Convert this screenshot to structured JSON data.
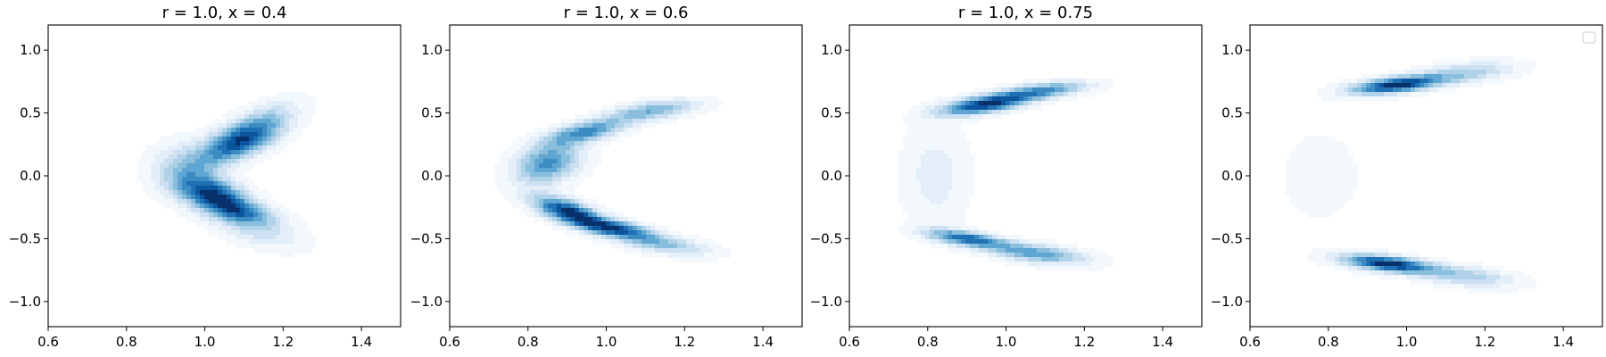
{
  "colors": {
    "cmap": [
      "#f3f8fd",
      "#e3eef9",
      "#cde0f2",
      "#b0d2e8",
      "#89bedc",
      "#60a6d2",
      "#3c8bc3",
      "#2070b4",
      "#0b559f",
      "#08306b"
    ],
    "axes_edge": "#000000",
    "background": "#ffffff"
  },
  "chart_data": [
    {
      "type": "contour",
      "title": "r = 1.0, x = 0.4",
      "xlim": [
        0.6,
        1.5
      ],
      "ylim": [
        -1.2,
        1.2
      ],
      "xticks": [
        0.6,
        0.8,
        1.0,
        1.2,
        1.4
      ],
      "yticks": [
        -1.0,
        -0.5,
        0.0,
        0.5,
        1.0
      ],
      "xtick_labels": [
        "0.6",
        "0.8",
        "1.0",
        "1.2",
        "1.4"
      ],
      "ytick_labels": [
        "−1.0",
        "−0.5",
        "0.0",
        "0.5",
        "1.0"
      ],
      "legend": false,
      "levels": 10,
      "density_components": [
        {
          "x": 1.09,
          "y": 0.27,
          "sx": 0.07,
          "sy": 0.12,
          "rho": 0.6,
          "w": 1.0
        },
        {
          "x": 1.02,
          "y": -0.13,
          "sx": 0.06,
          "sy": 0.09,
          "rho": -0.4,
          "w": 0.9
        },
        {
          "x": 1.08,
          "y": -0.28,
          "sx": 0.07,
          "sy": 0.08,
          "rho": -0.5,
          "w": 0.8
        },
        {
          "x": 1.15,
          "y": 0.45,
          "sx": 0.07,
          "sy": 0.12,
          "rho": 0.6,
          "w": 0.3
        },
        {
          "x": 1.14,
          "y": -0.45,
          "sx": 0.08,
          "sy": 0.1,
          "rho": -0.5,
          "w": 0.3
        },
        {
          "x": 0.95,
          "y": 0.05,
          "sx": 0.06,
          "sy": 0.14,
          "rho": 0.0,
          "w": 0.45
        }
      ]
    },
    {
      "type": "contour",
      "title": "r = 1.0, x = 0.6",
      "xlim": [
        0.6,
        1.5
      ],
      "ylim": [
        -1.2,
        1.2
      ],
      "xticks": [
        0.6,
        0.8,
        1.0,
        1.2,
        1.4
      ],
      "yticks": [
        -1.0,
        -0.5,
        0.0,
        0.5,
        1.0
      ],
      "xtick_labels": [
        "0.6",
        "0.8",
        "1.0",
        "1.2",
        "1.4"
      ],
      "ytick_labels": [
        "−1.0",
        "−0.5",
        "0.0",
        "0.5",
        "1.0"
      ],
      "legend": false,
      "levels": 10,
      "density_components": [
        {
          "x": 0.9,
          "y": -0.28,
          "sx": 0.06,
          "sy": 0.08,
          "rho": -0.6,
          "w": 1.0
        },
        {
          "x": 1.02,
          "y": -0.42,
          "sx": 0.07,
          "sy": 0.06,
          "rho": -0.6,
          "w": 0.9
        },
        {
          "x": 1.15,
          "y": -0.55,
          "sx": 0.08,
          "sy": 0.06,
          "rho": -0.5,
          "w": 0.45
        },
        {
          "x": 0.85,
          "y": 0.1,
          "sx": 0.06,
          "sy": 0.12,
          "rho": 0.3,
          "w": 0.7
        },
        {
          "x": 0.95,
          "y": 0.35,
          "sx": 0.07,
          "sy": 0.07,
          "rho": 0.6,
          "w": 0.7
        },
        {
          "x": 1.12,
          "y": 0.52,
          "sx": 0.08,
          "sy": 0.06,
          "rho": 0.5,
          "w": 0.55
        }
      ]
    },
    {
      "type": "contour",
      "title": "r = 1.0, x = 0.75",
      "xlim": [
        0.6,
        1.5
      ],
      "ylim": [
        -1.2,
        1.2
      ],
      "xticks": [
        0.6,
        0.8,
        1.0,
        1.2,
        1.4
      ],
      "yticks": [
        -1.0,
        -0.5,
        0.0,
        0.5,
        1.0
      ],
      "xtick_labels": [
        "0.6",
        "0.8",
        "1.0",
        "1.2",
        "1.4"
      ],
      "ytick_labels": [
        "−1.0",
        "−0.5",
        "0.0",
        "0.5",
        "1.0"
      ],
      "legend": false,
      "levels": 10,
      "density_components": [
        {
          "x": 0.95,
          "y": 0.57,
          "sx": 0.08,
          "sy": 0.06,
          "rho": 0.6,
          "w": 1.0
        },
        {
          "x": 1.1,
          "y": 0.68,
          "sx": 0.08,
          "sy": 0.05,
          "rho": 0.5,
          "w": 0.6
        },
        {
          "x": 0.9,
          "y": -0.5,
          "sx": 0.07,
          "sy": 0.05,
          "rho": -0.6,
          "w": 0.8
        },
        {
          "x": 1.08,
          "y": -0.62,
          "sx": 0.09,
          "sy": 0.06,
          "rho": -0.5,
          "w": 0.6
        },
        {
          "x": 0.82,
          "y": 0.0,
          "sx": 0.06,
          "sy": 0.3,
          "rho": 0.0,
          "w": 0.2
        }
      ]
    },
    {
      "type": "contour",
      "title": "",
      "xlim": [
        0.6,
        1.5
      ],
      "ylim": [
        -1.2,
        1.2
      ],
      "xticks": [
        0.6,
        0.8,
        1.0,
        1.2,
        1.4
      ],
      "yticks": [
        -1.0,
        -0.5,
        0.0,
        0.5,
        1.0
      ],
      "xtick_labels": [
        "0.6",
        "0.8",
        "1.0",
        "1.2",
        "1.4"
      ],
      "ytick_labels": [
        "−1.0",
        "−0.5",
        "0.0",
        "0.5",
        "1.0"
      ],
      "legend": true,
      "legend_loc": "upper right",
      "levels": 10,
      "density_components": [
        {
          "x": 0.97,
          "y": 0.72,
          "sx": 0.08,
          "sy": 0.05,
          "rho": 0.5,
          "w": 1.0
        },
        {
          "x": 1.15,
          "y": 0.82,
          "sx": 0.09,
          "sy": 0.06,
          "rho": 0.4,
          "w": 0.4
        },
        {
          "x": 0.95,
          "y": -0.7,
          "sx": 0.08,
          "sy": 0.05,
          "rho": -0.5,
          "w": 1.0
        },
        {
          "x": 1.15,
          "y": -0.8,
          "sx": 0.09,
          "sy": 0.06,
          "rho": -0.4,
          "w": 0.4
        },
        {
          "x": 0.78,
          "y": 0.0,
          "sx": 0.1,
          "sy": 0.35,
          "rho": 0.0,
          "w": 0.08
        }
      ]
    }
  ]
}
